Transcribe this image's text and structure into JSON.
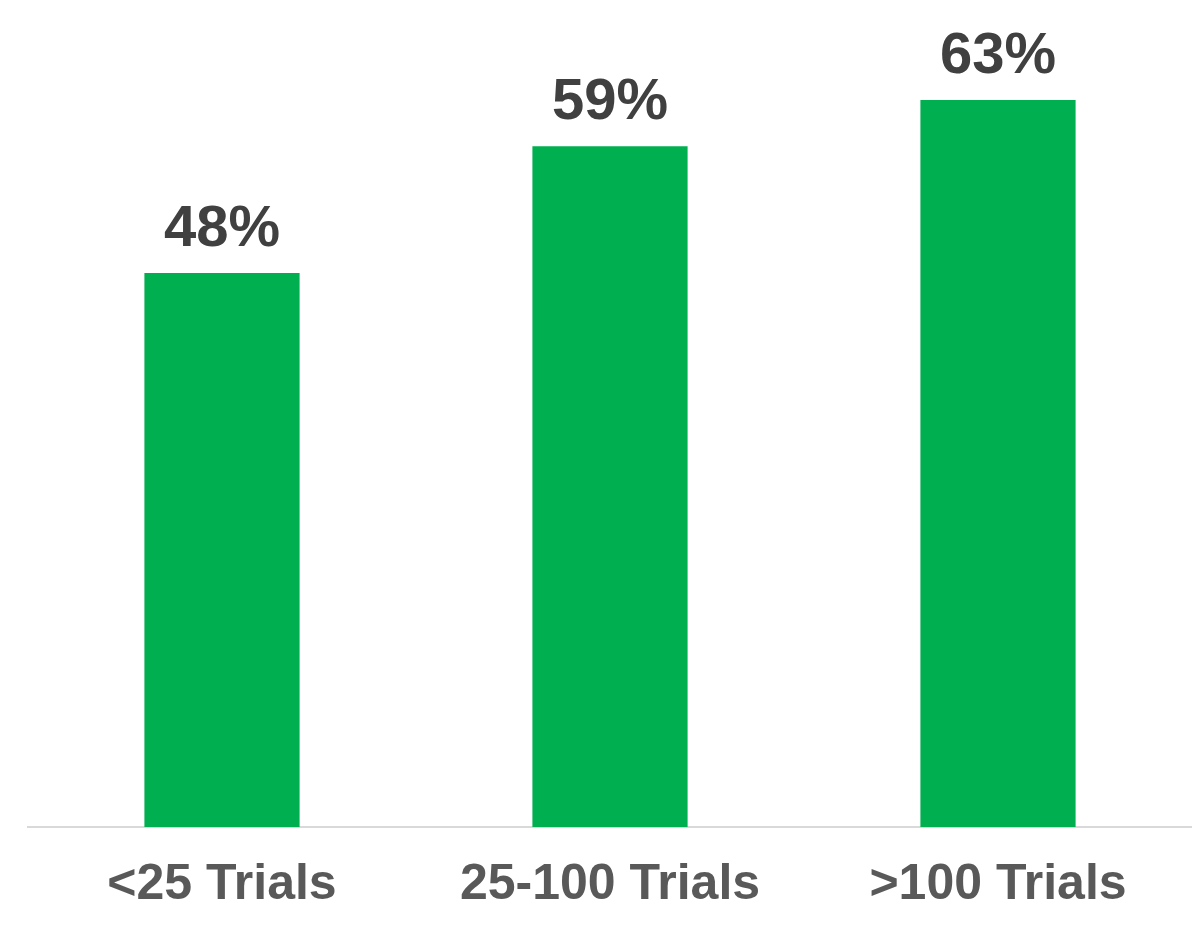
{
  "chart_data": {
    "type": "bar",
    "categories": [
      "<25 Trials",
      "25-100 Trials",
      ">100 Trials"
    ],
    "values": [
      48,
      59,
      63
    ],
    "color": "#00b050",
    "value_labels": [
      "48%",
      "59%",
      "63%"
    ]
  }
}
